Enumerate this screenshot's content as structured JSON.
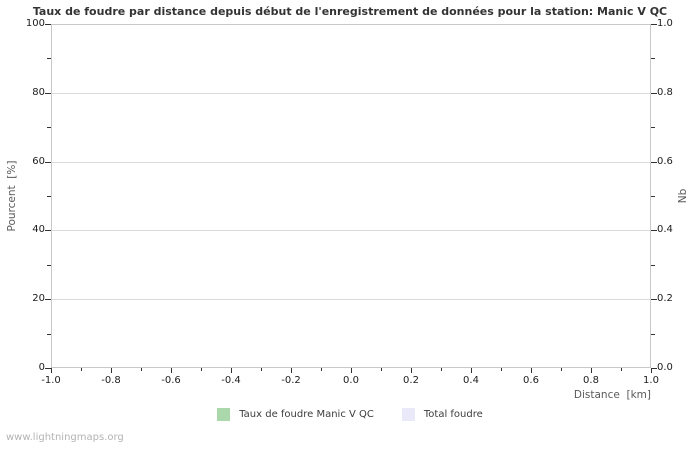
{
  "page": {
    "watermark": "www.lightningmaps.org"
  },
  "chart_data": {
    "type": "bar",
    "title": "Taux de foudre par distance depuis début de l'enregistrement de données pour la station: Manic V QC",
    "xlabel": "Distance  [km]",
    "ylabel_left": "Pourcent  [%]",
    "ylabel_right": "Nb",
    "xlim": [
      -1.0,
      1.0
    ],
    "ylim_left": [
      0,
      100
    ],
    "ylim_right": [
      0.0,
      1.0
    ],
    "x_tick_labels": [
      "-1.0",
      "-0.8",
      "-0.6",
      "-0.4",
      "-0.2",
      "0.0",
      "0.2",
      "0.4",
      "0.6",
      "0.8",
      "1.0"
    ],
    "y_tick_labels_left": [
      "100",
      "80",
      "60",
      "40",
      "20",
      "0"
    ],
    "y_tick_labels_right": [
      "1.0",
      "0.8",
      "0.6",
      "0.4",
      "0.2",
      "0.0"
    ],
    "grid": "horizontal major gridlines only",
    "legend_position": "bottom-center",
    "series": [
      {
        "name": "Taux de foudre Manic V QC",
        "color": "#aad8aa",
        "x": [],
        "values": []
      },
      {
        "name": "Total foudre",
        "color": "#e9e9fa",
        "x": [],
        "values": []
      }
    ]
  },
  "colors": {
    "background": "#ffffff",
    "plot_border": "#c8c8c8",
    "gridline": "#d9d9d9",
    "tick": "#333333",
    "tick_label": "#1c1c1c",
    "axis_label": "#5a5a5a",
    "title": "#333333",
    "legend_text": "#3c3c3c",
    "watermark": "#b3b3b3"
  }
}
